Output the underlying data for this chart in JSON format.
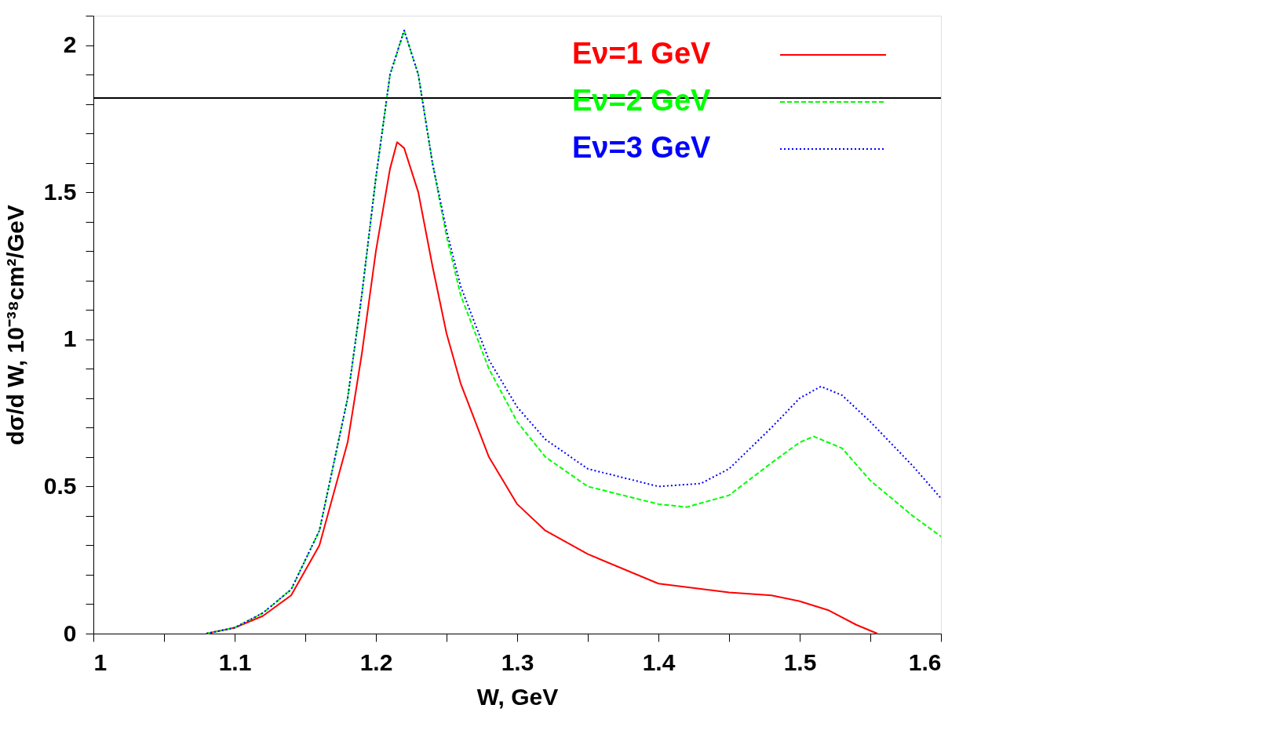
{
  "chart_data": {
    "type": "line",
    "xlabel": "W, GeV",
    "ylabel": "dσ/d W,  10⁻³⁸cm²/GeV",
    "xlim": [
      1,
      1.6
    ],
    "xticks": [
      1,
      {
        "value": 1.05,
        "label": null
      },
      1.1,
      {
        "value": 1.15,
        "label": null
      },
      1.2,
      {
        "value": 1.25,
        "label": null
      },
      1.3,
      {
        "value": 1.35,
        "label": null
      },
      1.4,
      {
        "value": 1.45,
        "label": null
      },
      1.5,
      {
        "value": 1.55,
        "label": null
      },
      1.6
    ],
    "ylim": [
      0,
      2.1
    ],
    "yticks": [
      0,
      {
        "value": 0.1,
        "label": null
      },
      {
        "value": 0.2,
        "label": null
      },
      {
        "value": 0.3,
        "label": null
      },
      {
        "value": 0.4,
        "label": null
      },
      0.5,
      {
        "value": 0.6,
        "label": null
      },
      {
        "value": 0.7,
        "label": null
      },
      {
        "value": 0.8,
        "label": null
      },
      {
        "value": 0.9,
        "label": null
      },
      1,
      {
        "value": 1.1,
        "label": null
      },
      {
        "value": 1.2,
        "label": null
      },
      {
        "value": 1.3,
        "label": null
      },
      {
        "value": 1.4,
        "label": null
      },
      1.5,
      {
        "value": 1.6,
        "label": null
      },
      {
        "value": 1.7,
        "label": null
      },
      {
        "value": 1.8,
        "label": null
      },
      {
        "value": 1.9,
        "label": null
      },
      2,
      {
        "value": 2.1,
        "label": null
      }
    ],
    "grid": false,
    "legend": "top right",
    "marker": "none",
    "ref_lines": [
      {
        "axis": "y",
        "value": 1.82,
        "color": "#000000"
      }
    ],
    "series": [
      {
        "name": "Eν=1 GeV",
        "color": "#ff0000",
        "line_style": "solid",
        "x": [
          1.08,
          1.1,
          1.12,
          1.14,
          1.16,
          1.18,
          1.19,
          1.2,
          1.21,
          1.215,
          1.22,
          1.23,
          1.24,
          1.25,
          1.26,
          1.28,
          1.3,
          1.32,
          1.35,
          1.4,
          1.45,
          1.48,
          1.5,
          1.52,
          1.54,
          1.555
        ],
        "values": [
          0,
          0.02,
          0.06,
          0.13,
          0.3,
          0.65,
          0.95,
          1.3,
          1.58,
          1.67,
          1.65,
          1.5,
          1.25,
          1.02,
          0.85,
          0.6,
          0.44,
          0.35,
          0.27,
          0.17,
          0.14,
          0.13,
          0.11,
          0.08,
          0.03,
          0
        ]
      },
      {
        "name": "Eν=2 GeV",
        "color": "#00ff00",
        "line_style": "dashed",
        "x": [
          1.08,
          1.1,
          1.12,
          1.14,
          1.16,
          1.18,
          1.19,
          1.2,
          1.21,
          1.22,
          1.23,
          1.24,
          1.25,
          1.26,
          1.28,
          1.3,
          1.32,
          1.35,
          1.4,
          1.42,
          1.45,
          1.48,
          1.5,
          1.51,
          1.53,
          1.55,
          1.58,
          1.6
        ],
        "values": [
          0,
          0.02,
          0.07,
          0.15,
          0.35,
          0.8,
          1.15,
          1.55,
          1.9,
          2.05,
          1.9,
          1.6,
          1.35,
          1.15,
          0.9,
          0.72,
          0.6,
          0.5,
          0.44,
          0.43,
          0.47,
          0.58,
          0.65,
          0.67,
          0.63,
          0.52,
          0.4,
          0.33
        ]
      },
      {
        "name": "Eν=3 GeV",
        "color": "#0000ff",
        "line_style": "dotted",
        "x": [
          1.08,
          1.1,
          1.12,
          1.14,
          1.16,
          1.18,
          1.19,
          1.2,
          1.21,
          1.22,
          1.23,
          1.24,
          1.25,
          1.26,
          1.28,
          1.3,
          1.32,
          1.35,
          1.4,
          1.43,
          1.45,
          1.48,
          1.5,
          1.515,
          1.53,
          1.55,
          1.58,
          1.6
        ],
        "values": [
          0,
          0.02,
          0.07,
          0.15,
          0.35,
          0.8,
          1.15,
          1.55,
          1.9,
          2.05,
          1.9,
          1.6,
          1.37,
          1.18,
          0.93,
          0.77,
          0.66,
          0.56,
          0.5,
          0.51,
          0.56,
          0.7,
          0.8,
          0.84,
          0.81,
          0.72,
          0.57,
          0.46
        ]
      }
    ]
  }
}
